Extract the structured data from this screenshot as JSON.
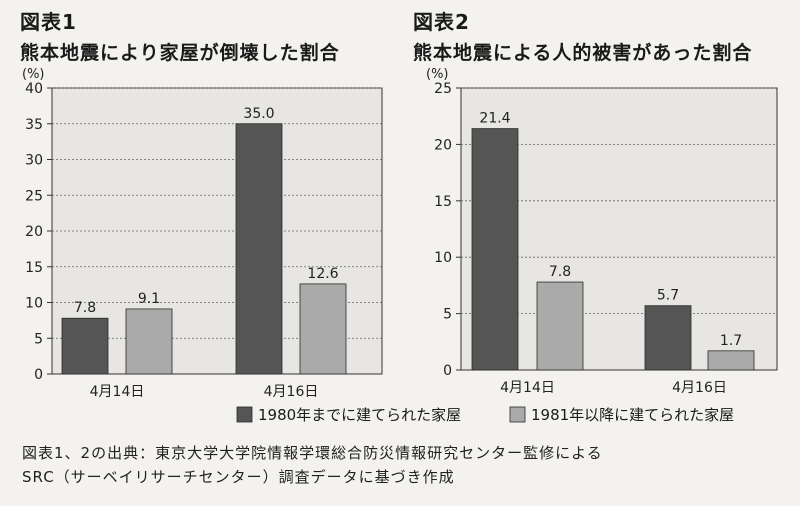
{
  "chart_data": [
    {
      "type": "bar",
      "label": "図表1",
      "title": "熊本地震により家屋が倒壊した割合",
      "unit": "(%)",
      "categories": [
        "4月14日",
        "4月16日"
      ],
      "series": [
        {
          "name": "1980年までに建てられた家屋",
          "values": [
            7.8,
            35.0
          ]
        },
        {
          "name": "1981年以降に建てられた家屋",
          "values": [
            9.1,
            12.6
          ]
        }
      ],
      "value_labels": [
        [
          "7.8",
          "35.0"
        ],
        [
          "9.1",
          "12.6"
        ]
      ],
      "ylim": [
        0,
        40
      ],
      "yticks": [
        0,
        5,
        10,
        15,
        20,
        25,
        30,
        35,
        40
      ],
      "grid": true
    },
    {
      "type": "bar",
      "label": "図表2",
      "title": "熊本地震による人的被害があった割合",
      "unit": "(%)",
      "categories": [
        "4月14日",
        "4月16日"
      ],
      "series": [
        {
          "name": "1980年までに建てられた家屋",
          "values": [
            21.4,
            5.7
          ]
        },
        {
          "name": "1981年以降に建てられた家屋",
          "values": [
            7.8,
            1.7
          ]
        }
      ],
      "value_labels": [
        [
          "21.4",
          "5.7"
        ],
        [
          "7.8",
          "1.7"
        ]
      ],
      "ylim": [
        0,
        25
      ],
      "yticks": [
        0,
        5,
        10,
        15,
        20,
        25
      ],
      "grid": true
    }
  ],
  "legend": {
    "placement": "bottom",
    "items": [
      {
        "label": "1980年までに建てられた家屋",
        "color": "#555555"
      },
      {
        "label": "1981年以降に建てられた家屋",
        "color": "#aaaaaa"
      }
    ]
  },
  "colors": {
    "series1": "#555555",
    "series2": "#aaaaaa",
    "plot_bg": "#e7e6e2",
    "grid": "#666666"
  },
  "source": {
    "line1": "図表1、2の出典：東京大学大学院情報学環総合防災情報研究センター監修による",
    "line2": "SRC（サーベイリサーチセンター）調査データに基づき作成"
  }
}
